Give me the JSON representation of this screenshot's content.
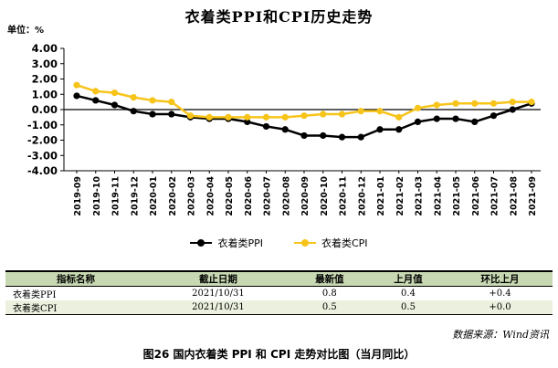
{
  "title": "衣着类PPI和CPI历史走势",
  "unit_label": "单位：%",
  "chart_data": {
    "type": "line",
    "title": "衣着类PPI和CPI历史走势",
    "xlabel": "",
    "ylabel": "单位：%",
    "ylim": [
      -4,
      4
    ],
    "yticks": [
      "4.00",
      "3.00",
      "2.00",
      "1.00",
      "0.00",
      "-1.00",
      "-2.00",
      "-3.00",
      "-4.00"
    ],
    "grid": false,
    "legend": "bottom",
    "categories": [
      "2019-09",
      "2019-10",
      "2019-11",
      "2019-12",
      "2020-01",
      "2020-02",
      "2020-03",
      "2020-04",
      "2020-05",
      "2020-06",
      "2020-07",
      "2020-08",
      "2020-09",
      "2020-10",
      "2020-11",
      "2020-12",
      "2021-01",
      "2021-02",
      "2021-03",
      "2021-04",
      "2021-05",
      "2021-06",
      "2021-07",
      "2021-08",
      "2021-09"
    ],
    "series": [
      {
        "name": "衣着类PPI",
        "color": "#000000",
        "values": [
          0.9,
          0.6,
          0.3,
          -0.1,
          -0.3,
          -0.3,
          -0.5,
          -0.6,
          -0.6,
          -0.8,
          -1.1,
          -1.3,
          -1.7,
          -1.7,
          -1.8,
          -1.8,
          -1.3,
          -1.3,
          -0.8,
          -0.6,
          -0.6,
          -0.8,
          -0.4,
          0.0,
          0.4
        ]
      },
      {
        "name": "衣着类CPI",
        "color": "#f7c41a",
        "values": [
          1.6,
          1.2,
          1.1,
          0.8,
          0.6,
          0.5,
          -0.4,
          -0.5,
          -0.5,
          -0.5,
          -0.5,
          -0.5,
          -0.4,
          -0.3,
          -0.3,
          -0.1,
          -0.1,
          -0.5,
          0.1,
          0.3,
          0.4,
          0.4,
          0.4,
          0.5,
          0.5
        ]
      }
    ]
  },
  "table": {
    "headers": [
      "指标名称",
      "截止日期",
      "最新值",
      "上月值",
      "环比上月"
    ],
    "rows": [
      [
        "衣着类PPI",
        "2021/10/31",
        "0.8",
        "0.4",
        "+0.4"
      ],
      [
        "衣着类CPI",
        "2021/10/31",
        "0.5",
        "0.5",
        "+0.0"
      ]
    ]
  },
  "source": "数据来源：Wind资讯",
  "caption": "图26   国内衣着类 PPI 和 CPI 走势对比图（当月同比）"
}
